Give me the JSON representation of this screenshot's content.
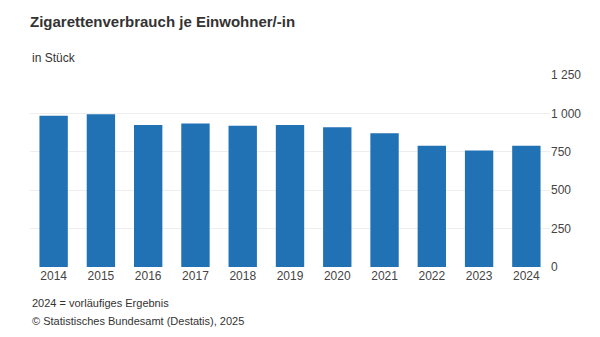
{
  "chart_data": {
    "type": "bar",
    "title": "Zigarettenverbrauch je Einwohner/-in",
    "subtitle": "in Stück",
    "categories": [
      "2014",
      "2015",
      "2016",
      "2017",
      "2018",
      "2019",
      "2020",
      "2021",
      "2022",
      "2023",
      "2024"
    ],
    "values": [
      985,
      995,
      925,
      935,
      920,
      925,
      910,
      870,
      790,
      758,
      790
    ],
    "color": "#2171b5",
    "ylim": [
      0,
      1250
    ],
    "yticks": [
      0,
      250,
      500,
      750,
      {
        "value": 1000,
        "label": "1 000"
      },
      {
        "value": 1250,
        "label": "1 250"
      }
    ],
    "grid": true,
    "annotations": [
      "2024 = vorläufiges Ergebnis",
      "© Statistisches Bundesamt (Destatis), 2025"
    ]
  }
}
